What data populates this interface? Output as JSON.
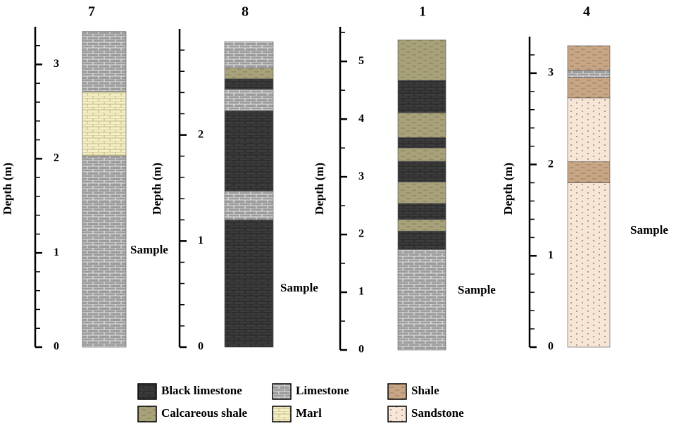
{
  "columns": [
    {
      "title": "7",
      "ylabel": "Depth (m)",
      "sample": "Sample",
      "ylim": [
        0,
        3.4
      ],
      "yticks": [
        0,
        1,
        2,
        3
      ],
      "minor_yticks": [
        0.2,
        0.4,
        0.6,
        0.8,
        1.2,
        1.4,
        1.6,
        1.8,
        2.2,
        2.4,
        2.6,
        2.8,
        3.2
      ],
      "layers": [
        {
          "lithology": "Limestone",
          "from": 0,
          "to": 2.03
        },
        {
          "lithology": "Marl",
          "from": 2.03,
          "to": 2.71
        },
        {
          "lithology": "Limestone",
          "from": 2.71,
          "to": 3.35
        }
      ]
    },
    {
      "title": "8",
      "ylabel": "Depth (m)",
      "sample": "Sample",
      "ylim": [
        0,
        3.0
      ],
      "yticks": [
        0,
        1,
        2
      ],
      "minor_yticks": [
        0.2,
        0.4,
        0.6,
        0.8,
        1.2,
        1.4,
        1.6,
        1.8,
        2.2,
        2.4,
        2.6,
        2.8
      ],
      "layers": [
        {
          "lithology": "Black limestone",
          "from": 0,
          "to": 1.2
        },
        {
          "lithology": "Limestone",
          "from": 1.2,
          "to": 1.47
        },
        {
          "lithology": "Black limestone",
          "from": 1.47,
          "to": 2.23
        },
        {
          "lithology": "Limestone",
          "from": 2.23,
          "to": 2.43
        },
        {
          "lithology": "Black limestone",
          "from": 2.43,
          "to": 2.53
        },
        {
          "lithology": "Calcareous shale",
          "from": 2.53,
          "to": 2.63
        },
        {
          "lithology": "Limestone",
          "from": 2.63,
          "to": 2.88
        }
      ]
    },
    {
      "title": "1",
      "ylabel": "Depth (m)",
      "sample": "Sample",
      "ylim": [
        0,
        5.6
      ],
      "yticks": [
        0,
        1,
        2,
        3,
        4,
        5
      ],
      "minor_yticks": [
        0.5,
        1.5,
        2.5,
        3.5,
        4.5,
        5.5
      ],
      "layers": [
        {
          "lithology": "Limestone",
          "from": 0,
          "to": 1.74
        },
        {
          "lithology": "Black limestone",
          "from": 1.74,
          "to": 2.06
        },
        {
          "lithology": "Calcareous shale",
          "from": 2.06,
          "to": 2.26
        },
        {
          "lithology": "Black limestone",
          "from": 2.26,
          "to": 2.54
        },
        {
          "lithology": "Calcareous shale",
          "from": 2.54,
          "to": 2.91
        },
        {
          "lithology": "Black limestone",
          "from": 2.91,
          "to": 3.27
        },
        {
          "lithology": "Calcareous shale",
          "from": 3.27,
          "to": 3.5
        },
        {
          "lithology": "Black limestone",
          "from": 3.5,
          "to": 3.68
        },
        {
          "lithology": "Calcareous shale",
          "from": 3.68,
          "to": 4.11
        },
        {
          "lithology": "Black limestone",
          "from": 4.11,
          "to": 4.67
        },
        {
          "lithology": "Calcareous shale",
          "from": 4.67,
          "to": 5.37
        }
      ]
    },
    {
      "title": "4",
      "ylabel": "Depth (m)",
      "sample": "Sample",
      "ylim": [
        0,
        3.4
      ],
      "yticks": [
        0,
        1,
        2,
        3
      ],
      "minor_yticks": [
        0.2,
        0.4,
        0.6,
        0.8,
        1.2,
        1.4,
        1.6,
        1.8,
        2.2,
        2.4,
        2.6,
        2.8,
        3.2
      ],
      "layers": [
        {
          "lithology": "Sandstone",
          "from": 0,
          "to": 1.8
        },
        {
          "lithology": "Shale",
          "from": 1.8,
          "to": 2.03
        },
        {
          "lithology": "Sandstone",
          "from": 2.03,
          "to": 2.73
        },
        {
          "lithology": "Shale",
          "from": 2.73,
          "to": 2.95
        },
        {
          "lithology": "Limestone",
          "from": 2.95,
          "to": 3.03
        },
        {
          "lithology": "Shale",
          "from": 3.03,
          "to": 3.3
        }
      ]
    }
  ],
  "legend": [
    {
      "name": "Black limestone",
      "color": "#3b3b3b",
      "texture": "brick"
    },
    {
      "name": "Limestone",
      "color": "#9c9c9c",
      "texture": "brick"
    },
    {
      "name": "Shale",
      "color": "#c8a584",
      "texture": "dash"
    },
    {
      "name": "Calcareous shale",
      "color": "#a7a27a",
      "texture": "dash"
    },
    {
      "name": "Marl",
      "color": "#f3efc6",
      "texture": "brick"
    },
    {
      "name": "Sandstone",
      "color": "#f7e5d5",
      "texture": "dots"
    }
  ]
}
